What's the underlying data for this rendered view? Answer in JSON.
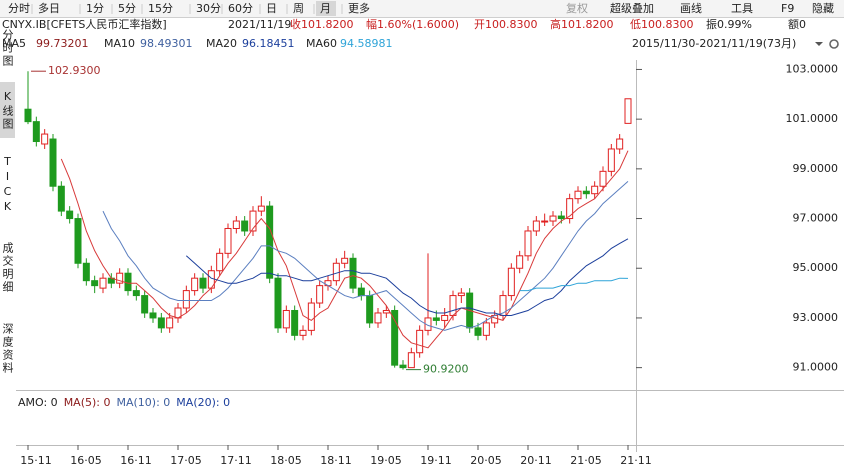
{
  "toolbar": {
    "tabs": [
      "分时",
      "多日",
      "1分",
      "5分",
      "15分",
      "30分",
      "60分",
      "日",
      "周",
      "月",
      "更多"
    ],
    "tools": [
      "复权",
      "超级叠加",
      "画线",
      "工具",
      "F9",
      "隐藏"
    ]
  },
  "sidebar": [
    "分时图",
    "K线图",
    "TICK",
    "成交明细",
    "深度资料"
  ],
  "quote": {
    "symbol": "CNYX.IB[CFETS人民币汇率指数]",
    "date": "2021/11/19",
    "items": [
      "收101.8200",
      "幅1.60%(1.6000)",
      "开100.8300",
      "高101.8200",
      "低100.8300",
      "振0.99%",
      "额0"
    ]
  },
  "range": "2015/11/30-2021/11/19(73月)",
  "chart_data": {
    "type": "candlestick",
    "categories": [
      "15·11",
      null,
      null,
      null,
      null,
      null,
      "16·05",
      null,
      null,
      null,
      null,
      null,
      "16·11",
      null,
      null,
      null,
      null,
      null,
      "17·05",
      null,
      null,
      null,
      null,
      null,
      "17·11",
      null,
      null,
      null,
      null,
      null,
      "18·05",
      null,
      null,
      null,
      null,
      null,
      "18·11",
      null,
      null,
      null,
      null,
      null,
      "19·05",
      null,
      null,
      null,
      null,
      null,
      "19·11",
      null,
      null,
      null,
      null,
      null,
      "20·05",
      null,
      null,
      null,
      null,
      null,
      "20·11",
      null,
      null,
      null,
      null,
      null,
      "21·05",
      null,
      null,
      null,
      null,
      null,
      "21·11"
    ],
    "open": [
      101.4,
      100.9,
      100.0,
      100.2,
      98.3,
      97.3,
      97.0,
      95.2,
      94.5,
      94.2,
      94.6,
      94.4,
      94.8,
      94.1,
      93.9,
      93.2,
      93.0,
      92.6,
      93.0,
      93.4,
      94.1,
      94.6,
      94.2,
      94.9,
      95.6,
      96.6,
      96.9,
      96.5,
      97.3,
      97.5,
      94.6,
      92.6,
      93.3,
      92.3,
      92.5,
      93.6,
      94.3,
      94.5,
      95.2,
      95.4,
      94.2,
      93.9,
      92.8,
      93.2,
      93.3,
      91.1,
      91.0,
      91.6,
      92.5,
      93.0,
      92.9,
      93.1,
      93.9,
      94.0,
      92.6,
      92.3,
      92.8,
      93.1,
      93.9,
      95.0,
      95.5,
      96.5,
      96.9,
      96.9,
      97.1,
      97.0,
      97.8,
      98.1,
      98.0,
      98.3,
      98.9,
      99.8,
      100.83
    ],
    "high": [
      102.93,
      101.1,
      100.6,
      100.4,
      98.5,
      97.5,
      97.2,
      95.4,
      94.7,
      94.8,
      94.8,
      95.0,
      95.0,
      94.3,
      94.1,
      93.4,
      93.2,
      93.2,
      93.6,
      94.3,
      94.8,
      94.8,
      95.1,
      95.8,
      96.8,
      97.1,
      97.1,
      97.5,
      97.9,
      97.7,
      94.8,
      93.5,
      93.5,
      92.7,
      93.8,
      94.5,
      94.7,
      95.4,
      95.7,
      95.6,
      94.4,
      94.1,
      93.4,
      93.5,
      93.5,
      91.3,
      91.8,
      92.7,
      95.6,
      93.3,
      93.4,
      94.1,
      94.2,
      94.2,
      92.8,
      93.0,
      93.3,
      94.1,
      95.2,
      95.7,
      96.7,
      97.1,
      97.2,
      97.3,
      97.3,
      98.0,
      98.3,
      98.3,
      98.5,
      99.1,
      100.0,
      100.4,
      101.82
    ],
    "low": [
      100.8,
      99.9,
      99.8,
      98.1,
      97.1,
      96.8,
      95.0,
      94.3,
      94.0,
      94.0,
      94.2,
      94.2,
      93.9,
      93.7,
      93.0,
      92.8,
      92.4,
      92.4,
      92.8,
      93.2,
      93.9,
      94.0,
      94.0,
      94.7,
      95.4,
      96.4,
      96.3,
      96.3,
      97.1,
      94.4,
      92.4,
      92.4,
      92.1,
      92.1,
      92.3,
      93.4,
      94.1,
      94.3,
      95.0,
      94.0,
      93.7,
      92.6,
      92.6,
      93.0,
      91.0,
      90.92,
      91.0,
      91.4,
      92.3,
      92.7,
      92.6,
      92.9,
      93.6,
      92.4,
      92.1,
      92.1,
      92.6,
      92.9,
      93.7,
      94.8,
      95.3,
      96.3,
      96.7,
      96.7,
      96.8,
      96.8,
      97.6,
      97.8,
      97.8,
      98.1,
      98.7,
      99.6,
      100.83
    ],
    "close": [
      100.9,
      100.1,
      100.4,
      98.3,
      97.3,
      97.0,
      95.2,
      94.5,
      94.3,
      94.6,
      94.4,
      94.8,
      94.1,
      93.9,
      93.2,
      93.0,
      92.6,
      93.0,
      93.4,
      94.1,
      94.6,
      94.2,
      94.9,
      95.6,
      96.6,
      96.9,
      96.5,
      97.3,
      97.5,
      94.6,
      92.6,
      93.3,
      92.3,
      92.5,
      93.6,
      94.3,
      94.5,
      95.2,
      95.4,
      94.2,
      93.9,
      92.8,
      93.2,
      93.3,
      91.1,
      91.0,
      91.6,
      92.5,
      93.0,
      92.9,
      93.1,
      93.9,
      94.0,
      92.6,
      92.3,
      92.8,
      93.1,
      93.9,
      95.0,
      95.5,
      96.5,
      96.9,
      96.9,
      97.1,
      97.0,
      97.8,
      98.1,
      98.0,
      98.3,
      98.9,
      99.8,
      100.2,
      101.82
    ],
    "up_color": "#e02020",
    "down_color": "#1e9a1e",
    "series": [
      {
        "name": "MA5",
        "color": "#d83a3a",
        "label_color": "#8b1a1a",
        "values": [
          null,
          null,
          null,
          null,
          99.4,
          98.6,
          97.6,
          96.5,
          95.7,
          95.1,
          94.6,
          94.5,
          94.4,
          94.4,
          94.1,
          93.8,
          93.4,
          93.1,
          93.0,
          93.2,
          93.5,
          93.9,
          94.2,
          94.7,
          95.2,
          95.6,
          96.1,
          96.6,
          97.0,
          96.6,
          95.7,
          95.1,
          94.1,
          93.1,
          92.9,
          93.2,
          93.4,
          94.0,
          94.6,
          94.7,
          94.6,
          94.3,
          93.9,
          93.5,
          92.9,
          92.3,
          92.0,
          91.9,
          91.8,
          92.2,
          92.6,
          93.1,
          93.4,
          93.3,
          93.2,
          93.1,
          93.0,
          92.9,
          93.4,
          94.1,
          94.8,
          95.6,
          96.2,
          96.6,
          96.9,
          97.1,
          97.4,
          97.6,
          97.8,
          98.2,
          98.6,
          99.0,
          99.73201
        ]
      },
      {
        "name": "MA10",
        "color": "#5b7fc0",
        "label_color": "#3e5f9e",
        "values": [
          null,
          null,
          null,
          null,
          null,
          null,
          null,
          null,
          null,
          97.3,
          96.6,
          96.1,
          95.5,
          95.1,
          94.6,
          94.2,
          94.0,
          93.8,
          93.7,
          93.7,
          93.7,
          93.7,
          93.7,
          93.9,
          94.2,
          94.6,
          95.0,
          95.4,
          95.9,
          95.9,
          95.7,
          95.6,
          95.4,
          95.1,
          94.8,
          94.5,
          94.3,
          94.1,
          93.9,
          93.8,
          93.9,
          93.9,
          94.0,
          94.1,
          93.8,
          93.5,
          93.2,
          92.9,
          92.7,
          92.6,
          92.5,
          92.6,
          92.7,
          92.6,
          92.7,
          92.9,
          93.1,
          93.2,
          93.4,
          93.7,
          94.0,
          94.3,
          94.6,
          95.0,
          95.5,
          96.0,
          96.5,
          96.9,
          97.2,
          97.6,
          97.9,
          98.2,
          98.49301
        ]
      },
      {
        "name": "MA20",
        "color": "#1c3f9c",
        "label_color": "#1c3f9c",
        "values": [
          null,
          null,
          null,
          null,
          null,
          null,
          null,
          null,
          null,
          null,
          null,
          null,
          null,
          null,
          null,
          null,
          null,
          null,
          null,
          95.5,
          95.2,
          94.9,
          94.6,
          94.5,
          94.4,
          94.4,
          94.5,
          94.6,
          94.8,
          94.8,
          94.7,
          94.7,
          94.6,
          94.5,
          94.5,
          94.6,
          94.7,
          94.8,
          94.9,
          94.9,
          94.8,
          94.8,
          94.7,
          94.6,
          94.3,
          94.0,
          93.8,
          93.5,
          93.3,
          93.2,
          93.2,
          93.3,
          93.4,
          93.4,
          93.3,
          93.2,
          93.2,
          93.1,
          93.1,
          93.2,
          93.3,
          93.5,
          93.7,
          93.8,
          94.1,
          94.5,
          94.8,
          95.1,
          95.3,
          95.5,
          95.8,
          96.0,
          96.18451
        ]
      },
      {
        "name": "MA60",
        "color": "#2fa4d8",
        "label_color": "#2fa4d8",
        "values": [
          null,
          null,
          null,
          null,
          null,
          null,
          null,
          null,
          null,
          null,
          null,
          null,
          null,
          null,
          null,
          null,
          null,
          null,
          null,
          null,
          null,
          null,
          null,
          null,
          null,
          null,
          null,
          null,
          null,
          null,
          null,
          null,
          null,
          null,
          null,
          null,
          null,
          null,
          null,
          null,
          null,
          null,
          null,
          null,
          null,
          null,
          null,
          null,
          null,
          null,
          null,
          null,
          null,
          null,
          null,
          null,
          null,
          null,
          null,
          94.1,
          94.1,
          94.2,
          94.2,
          94.2,
          94.3,
          94.3,
          94.4,
          94.4,
          94.5,
          94.5,
          94.5,
          94.6,
          94.58981
        ]
      }
    ],
    "ylim": [
      90.1,
      103.3
    ],
    "yticks": [
      {
        "value": 91,
        "label": "91.0000"
      },
      {
        "value": 93,
        "label": "93.0000"
      },
      {
        "value": 95,
        "label": "95.0000"
      },
      {
        "value": 97,
        "label": "97.0000"
      },
      {
        "value": 99,
        "label": "99.0000"
      },
      {
        "value": 101,
        "label": "101.0000"
      },
      {
        "value": 103,
        "label": "103.0000"
      }
    ],
    "annotations": [
      {
        "value": 102.93,
        "label": "102.9300",
        "color": "#a83232"
      },
      {
        "value": 90.92,
        "label": "90.9200",
        "color": "#2e7d32"
      }
    ]
  },
  "volume_panel": {
    "items": [
      {
        "text": "AMO: 0",
        "color": "#222222"
      },
      {
        "text": "MA(5): 0",
        "color": "#8b1a1a"
      },
      {
        "text": "MA(10): 0",
        "color": "#3e5f9e"
      },
      {
        "text": "MA(20): 0",
        "color": "#1c3f9c"
      }
    ]
  }
}
